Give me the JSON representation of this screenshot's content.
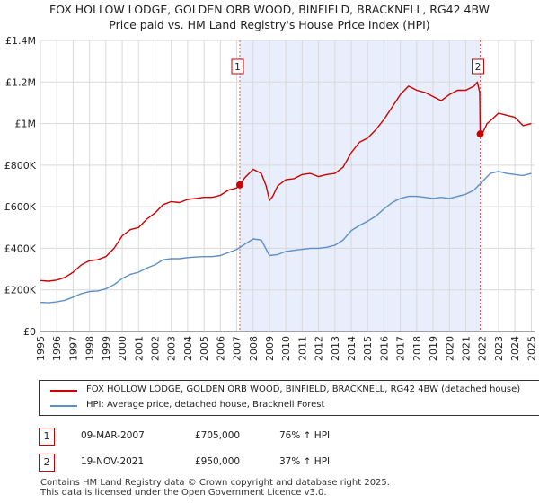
{
  "title_line1": "FOX HOLLOW LODGE, GOLDEN ORB WOOD, BINFIELD, BRACKNELL, RG42 4BW",
  "title_line2": "Price paid vs. HM Land Registry's House Price Index (HPI)",
  "colors": {
    "property_line": "#cc0000",
    "hpi_line": "#5b8fc9",
    "shade": "#e8eefb",
    "grid": "#d9d9d9",
    "vline": "#e06060"
  },
  "chart_data": {
    "type": "line",
    "title": "Price paid vs. HM Land Registry's House Price Index (HPI)",
    "xlim": [
      1995.0,
      2025.2
    ],
    "ylim": [
      0,
      1400000
    ],
    "y_ticks": [
      {
        "value": 0,
        "label": "£0"
      },
      {
        "value": 200000,
        "label": "£200K"
      },
      {
        "value": 400000,
        "label": "£400K"
      },
      {
        "value": 600000,
        "label": "£600K"
      },
      {
        "value": 800000,
        "label": "£800K"
      },
      {
        "value": 1000000,
        "label": "£1M"
      },
      {
        "value": 1200000,
        "label": "£1.2M"
      },
      {
        "value": 1400000,
        "label": "£1.4M"
      }
    ],
    "x_ticks": [
      "1995",
      "1996",
      "1997",
      "1998",
      "1999",
      "2000",
      "2001",
      "2002",
      "2003",
      "2004",
      "2005",
      "2006",
      "2007",
      "2008",
      "2009",
      "2010",
      "2011",
      "2012",
      "2013",
      "2014",
      "2015",
      "2016",
      "2017",
      "2018",
      "2019",
      "2020",
      "2021",
      "2022",
      "2023",
      "2024",
      "2025"
    ],
    "shaded_region": [
      2007.19,
      2021.88
    ],
    "series": [
      {
        "name": "FOX HOLLOW LODGE, GOLDEN ORB WOOD, BINFIELD, BRACKNELL, RG42 4BW (detached house)",
        "x": [
          1995.0,
          1995.5,
          1996.0,
          1996.5,
          1997.0,
          1997.5,
          1998.0,
          1998.5,
          1999.0,
          1999.5,
          2000.0,
          2000.5,
          2001.0,
          2001.5,
          2002.0,
          2002.5,
          2003.0,
          2003.5,
          2004.0,
          2004.5,
          2005.0,
          2005.5,
          2006.0,
          2006.5,
          2007.0,
          2007.19,
          2007.5,
          2008.0,
          2008.5,
          2008.8,
          2009.0,
          2009.2,
          2009.5,
          2010.0,
          2010.5,
          2011.0,
          2011.5,
          2012.0,
          2012.5,
          2013.0,
          2013.5,
          2014.0,
          2014.5,
          2015.0,
          2015.5,
          2016.0,
          2016.5,
          2017.0,
          2017.5,
          2018.0,
          2018.5,
          2019.0,
          2019.5,
          2020.0,
          2020.5,
          2021.0,
          2021.5,
          2021.7,
          2021.85,
          2021.88,
          2022.0,
          2022.3,
          2022.6,
          2023.0,
          2023.5,
          2024.0,
          2024.5,
          2025.0
        ],
        "values": [
          245000,
          242000,
          247000,
          260000,
          285000,
          320000,
          340000,
          345000,
          360000,
          400000,
          460000,
          490000,
          500000,
          540000,
          570000,
          610000,
          625000,
          620000,
          635000,
          640000,
          645000,
          645000,
          655000,
          680000,
          690000,
          705000,
          740000,
          780000,
          760000,
          700000,
          630000,
          650000,
          700000,
          730000,
          735000,
          755000,
          760000,
          745000,
          755000,
          760000,
          790000,
          860000,
          910000,
          930000,
          970000,
          1020000,
          1080000,
          1140000,
          1180000,
          1160000,
          1150000,
          1130000,
          1110000,
          1140000,
          1160000,
          1160000,
          1180000,
          1200000,
          1150000,
          950000,
          950000,
          1000000,
          1020000,
          1050000,
          1040000,
          1030000,
          990000,
          1000000
        ]
      },
      {
        "name": "HPI: Average price, detached house, Bracknell Forest",
        "x": [
          1995.0,
          1995.5,
          1996.0,
          1996.5,
          1997.0,
          1997.5,
          1998.0,
          1998.5,
          1999.0,
          1999.5,
          2000.0,
          2000.5,
          2001.0,
          2001.5,
          2002.0,
          2002.5,
          2003.0,
          2003.5,
          2004.0,
          2004.5,
          2005.0,
          2005.5,
          2006.0,
          2006.5,
          2007.0,
          2007.5,
          2008.0,
          2008.5,
          2009.0,
          2009.5,
          2010.0,
          2010.5,
          2011.0,
          2011.5,
          2012.0,
          2012.5,
          2013.0,
          2013.5,
          2014.0,
          2014.5,
          2015.0,
          2015.5,
          2016.0,
          2016.5,
          2017.0,
          2017.5,
          2018.0,
          2018.5,
          2019.0,
          2019.5,
          2020.0,
          2020.5,
          2021.0,
          2021.5,
          2022.0,
          2022.5,
          2023.0,
          2023.5,
          2024.0,
          2024.5,
          2025.0
        ],
        "values": [
          140000,
          138000,
          142000,
          150000,
          165000,
          182000,
          192000,
          195000,
          205000,
          225000,
          255000,
          275000,
          285000,
          305000,
          320000,
          345000,
          350000,
          350000,
          355000,
          358000,
          360000,
          360000,
          365000,
          380000,
          395000,
          420000,
          445000,
          440000,
          365000,
          370000,
          385000,
          390000,
          395000,
          400000,
          400000,
          405000,
          415000,
          440000,
          485000,
          510000,
          530000,
          555000,
          590000,
          620000,
          640000,
          650000,
          650000,
          645000,
          640000,
          645000,
          640000,
          650000,
          660000,
          680000,
          720000,
          760000,
          770000,
          760000,
          755000,
          750000,
          760000
        ]
      }
    ],
    "annotations": [
      {
        "label": "1",
        "x": 2007.19,
        "y": 705000
      },
      {
        "label": "2",
        "x": 2021.88,
        "y": 950000
      }
    ]
  },
  "legend": {
    "property": "FOX HOLLOW LODGE, GOLDEN ORB WOOD, BINFIELD, BRACKNELL, RG42 4BW (detached house)",
    "hpi": "HPI: Average price, detached house, Bracknell Forest"
  },
  "sales": [
    {
      "num": "1",
      "date": "09-MAR-2007",
      "price": "£705,000",
      "hpi": "76% ↑ HPI"
    },
    {
      "num": "2",
      "date": "19-NOV-2021",
      "price": "£950,000",
      "hpi": "37% ↑ HPI"
    }
  ],
  "footer": {
    "line1": "Contains HM Land Registry data © Crown copyright and database right 2025.",
    "line2": "This data is licensed under the Open Government Licence v3.0."
  }
}
